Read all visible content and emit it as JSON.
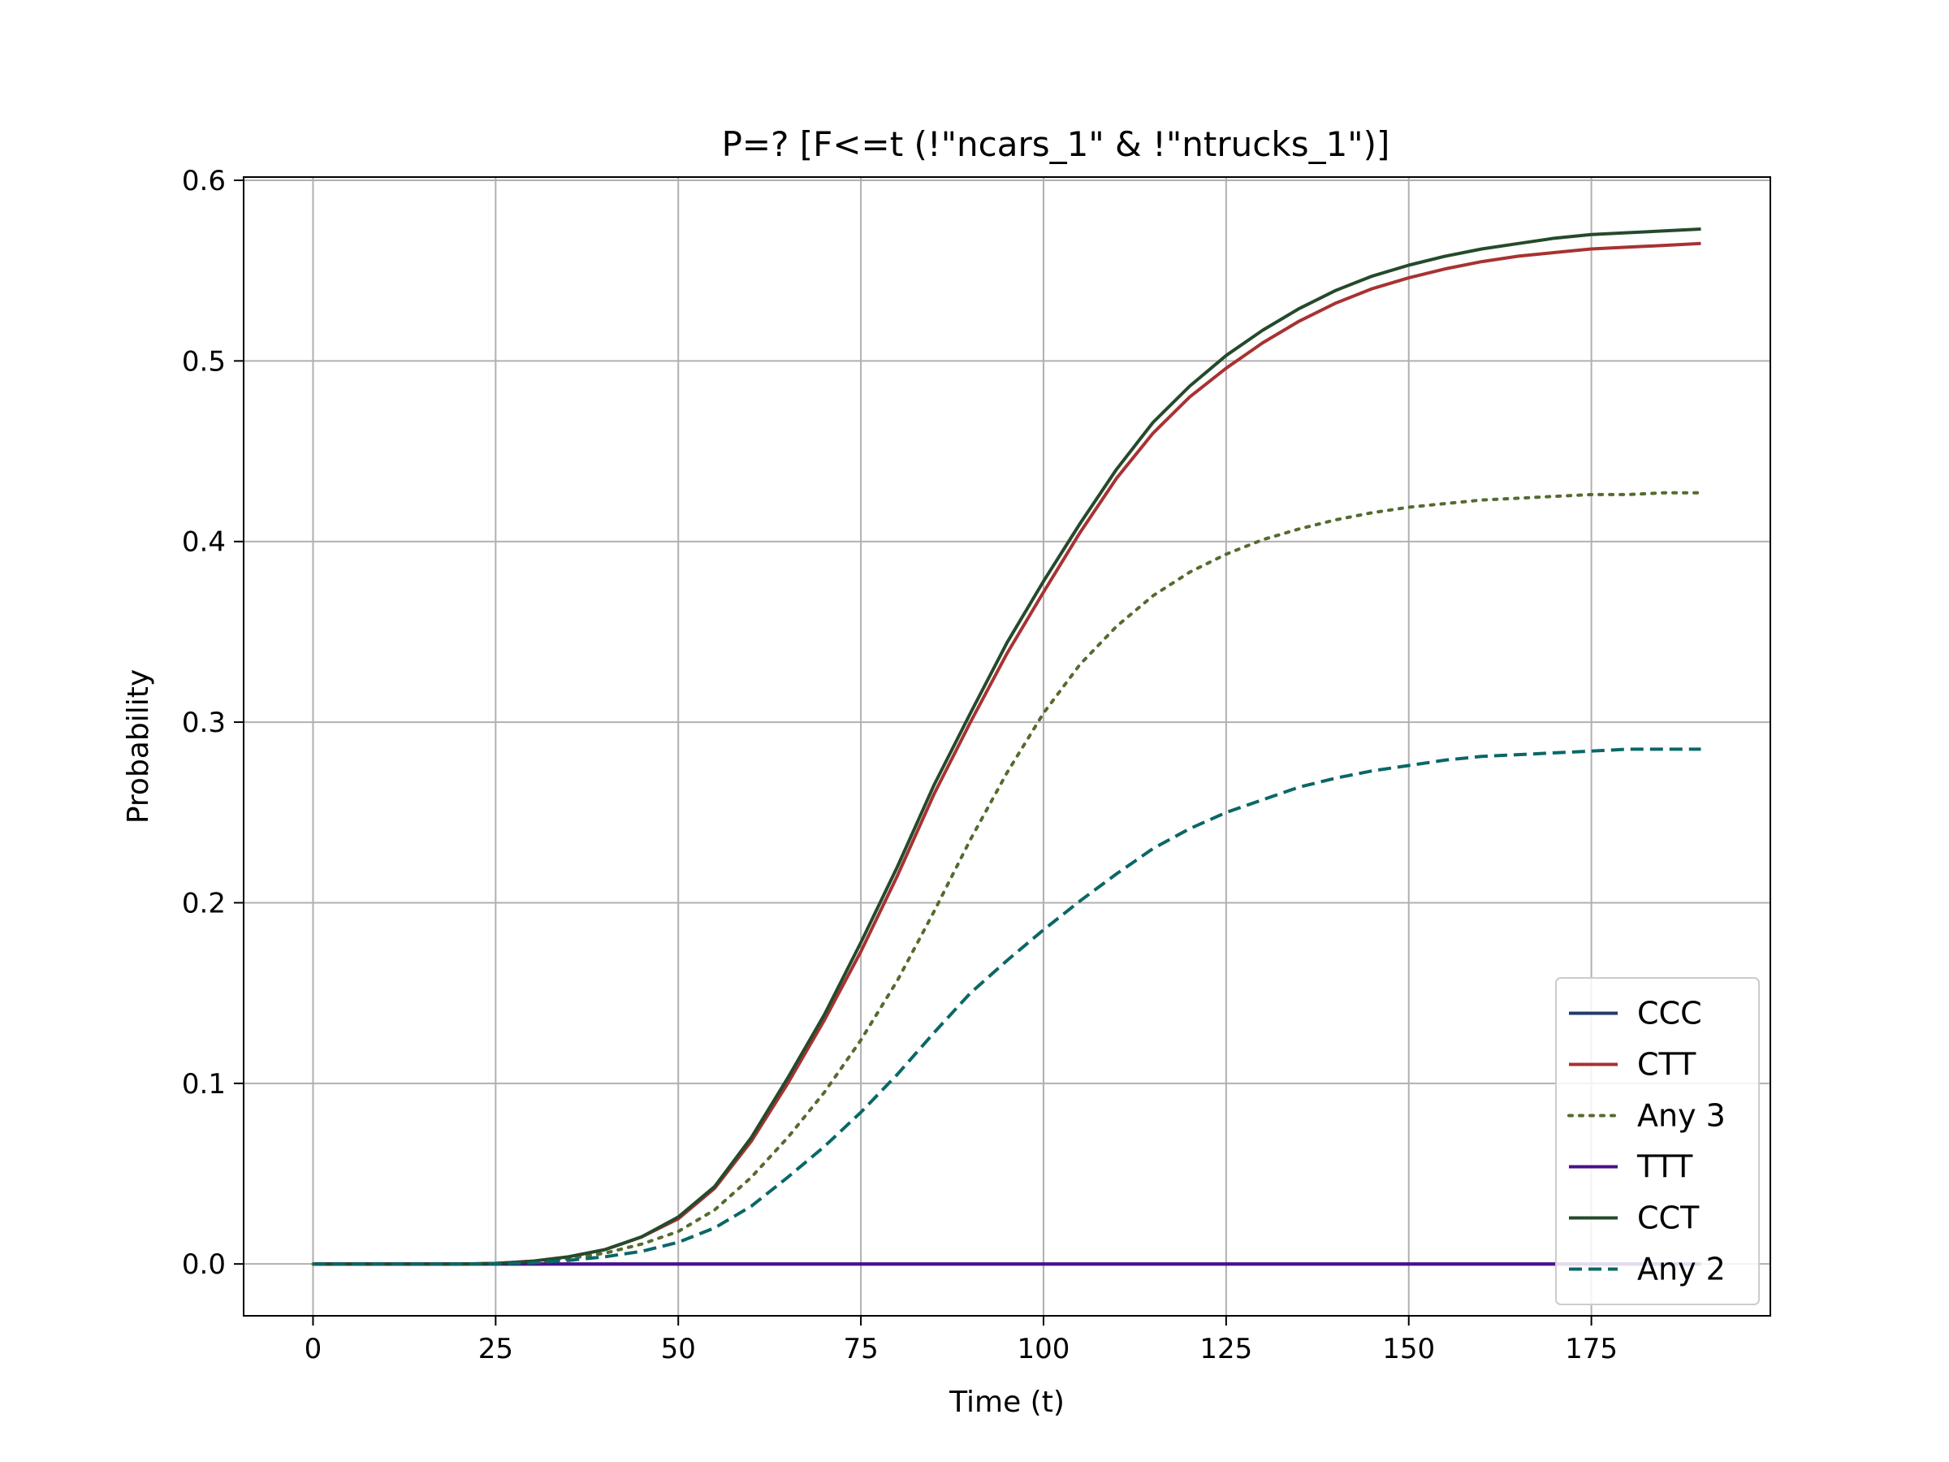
{
  "chart_data": {
    "type": "line",
    "title": "P=? [F<=t (!\"ncars_1\" & !\"ntrucks_1\")]",
    "xlabel": "Time (t)",
    "ylabel": "Probability",
    "xlim": [
      -9.5,
      199.5
    ],
    "ylim": [
      -0.0287,
      0.6018
    ],
    "xticks": [
      0,
      25,
      50,
      75,
      100,
      125,
      150,
      175
    ],
    "xtick_labels": [
      "0",
      "25",
      "50",
      "75",
      "100",
      "125",
      "150",
      "175"
    ],
    "yticks": [
      0.0,
      0.1,
      0.2,
      0.3,
      0.4,
      0.5,
      0.6
    ],
    "ytick_labels": [
      "0.0",
      "0.1",
      "0.2",
      "0.3",
      "0.4",
      "0.5",
      "0.6"
    ],
    "grid": true,
    "legend_position": "bottom-right",
    "x": [
      0,
      10,
      20,
      25,
      30,
      35,
      40,
      45,
      50,
      55,
      60,
      65,
      70,
      75,
      80,
      85,
      90,
      95,
      100,
      105,
      110,
      115,
      120,
      125,
      130,
      135,
      140,
      145,
      150,
      155,
      160,
      165,
      170,
      175,
      180,
      185,
      190
    ],
    "series": [
      {
        "name": "CCC",
        "color": "#1f3b6b",
        "dash": "solid",
        "values": [
          0,
          0,
          0,
          0,
          0,
          0,
          0,
          0,
          0,
          0,
          0,
          0,
          0,
          0,
          0,
          0,
          0,
          0,
          0,
          0,
          0,
          0,
          0,
          0,
          0,
          0,
          0,
          0,
          0,
          0,
          0,
          0,
          0,
          0,
          0,
          0,
          0
        ]
      },
      {
        "name": "CTT",
        "color": "#a83232",
        "dash": "solid",
        "values": [
          0,
          0,
          0,
          0.0003,
          0.0015,
          0.004,
          0.008,
          0.015,
          0.025,
          0.042,
          0.068,
          0.1,
          0.135,
          0.173,
          0.215,
          0.26,
          0.3,
          0.338,
          0.372,
          0.405,
          0.435,
          0.46,
          0.48,
          0.496,
          0.51,
          0.522,
          0.532,
          0.54,
          0.546,
          0.551,
          0.555,
          0.558,
          0.56,
          0.562,
          0.563,
          0.564,
          0.565
        ]
      },
      {
        "name": "Any 3",
        "color": "#556b2f",
        "dash": "dotted",
        "values": [
          0,
          0,
          0,
          0.0002,
          0.001,
          0.003,
          0.006,
          0.011,
          0.018,
          0.03,
          0.048,
          0.07,
          0.095,
          0.124,
          0.157,
          0.195,
          0.235,
          0.272,
          0.305,
          0.332,
          0.353,
          0.37,
          0.383,
          0.393,
          0.401,
          0.407,
          0.412,
          0.416,
          0.419,
          0.421,
          0.423,
          0.424,
          0.425,
          0.426,
          0.426,
          0.427,
          0.427
        ]
      },
      {
        "name": "TTT",
        "color": "#4b0f8c",
        "dash": "solid",
        "values": [
          0,
          0,
          0,
          0,
          0,
          0,
          0,
          0,
          0,
          0,
          0,
          0,
          0,
          0,
          0,
          0,
          0,
          0,
          0,
          0,
          0,
          0,
          0,
          0,
          0,
          0,
          0,
          0,
          0,
          0,
          0,
          0,
          0,
          0,
          0,
          0,
          0
        ]
      },
      {
        "name": "CCT",
        "color": "#244a2c",
        "dash": "solid",
        "values": [
          0,
          0,
          0,
          0.0003,
          0.0015,
          0.004,
          0.008,
          0.015,
          0.026,
          0.043,
          0.07,
          0.103,
          0.138,
          0.178,
          0.22,
          0.265,
          0.305,
          0.344,
          0.378,
          0.41,
          0.44,
          0.466,
          0.486,
          0.503,
          0.517,
          0.529,
          0.539,
          0.547,
          0.553,
          0.558,
          0.562,
          0.565,
          0.568,
          0.57,
          0.571,
          0.572,
          0.573
        ]
      },
      {
        "name": "Any 2",
        "color": "#0b6767",
        "dash": "dashed",
        "values": [
          0,
          0,
          0,
          0.0001,
          0.0006,
          0.002,
          0.004,
          0.007,
          0.012,
          0.02,
          0.032,
          0.048,
          0.065,
          0.084,
          0.105,
          0.128,
          0.15,
          0.168,
          0.185,
          0.201,
          0.216,
          0.23,
          0.241,
          0.25,
          0.257,
          0.264,
          0.269,
          0.273,
          0.276,
          0.279,
          0.281,
          0.282,
          0.283,
          0.284,
          0.285,
          0.285,
          0.285
        ]
      }
    ]
  }
}
